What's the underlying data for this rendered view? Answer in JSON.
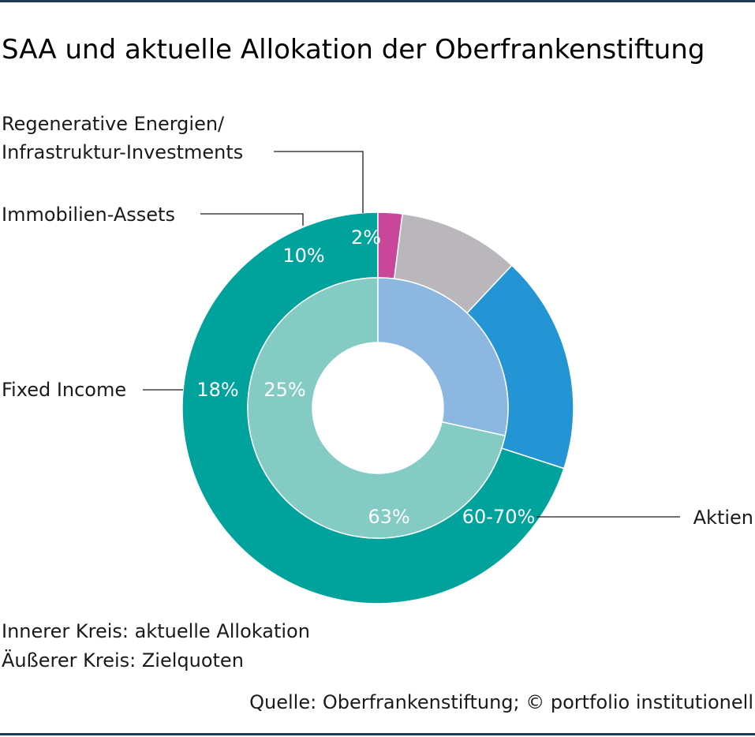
{
  "chart_data": {
    "type": "pie",
    "title": "SAA und aktuelle Allokation der Oberfrankenstiftung",
    "categories": [
      "Aktien",
      "Fixed Income",
      "Immobilien-Assets",
      "Regenerative Energien/ Infrastruktur-Investments"
    ],
    "category_lines": [
      [
        "Aktien"
      ],
      [
        "Fixed Income"
      ],
      [
        "Immobilien-Assets"
      ],
      [
        "Regenerative Energien/",
        "Infrastruktur-Investments"
      ]
    ],
    "series": [
      {
        "ring": "outer",
        "values": [
          70,
          18,
          10,
          2
        ],
        "labels": [
          "60-70%",
          "18%",
          "10%",
          "2%"
        ],
        "colors": [
          "#00a39c",
          "#2394d4",
          "#b9b7bc",
          "#c8479a"
        ]
      },
      {
        "ring": "inner",
        "values": [
          63,
          25,
          0,
          0
        ],
        "labels": [
          "63%",
          "25%",
          "",
          ""
        ],
        "colors": [
          "#84cbc4",
          "#8bb7e0",
          "#b9b7bc",
          "#c8479a"
        ]
      }
    ],
    "notes": [
      "Innerer Kreis: aktuelle Allokation",
      "Äußerer Kreis: Zielquoten"
    ],
    "source": "Quelle: Oberfrankenstiftung; © portfolio institutionell"
  }
}
